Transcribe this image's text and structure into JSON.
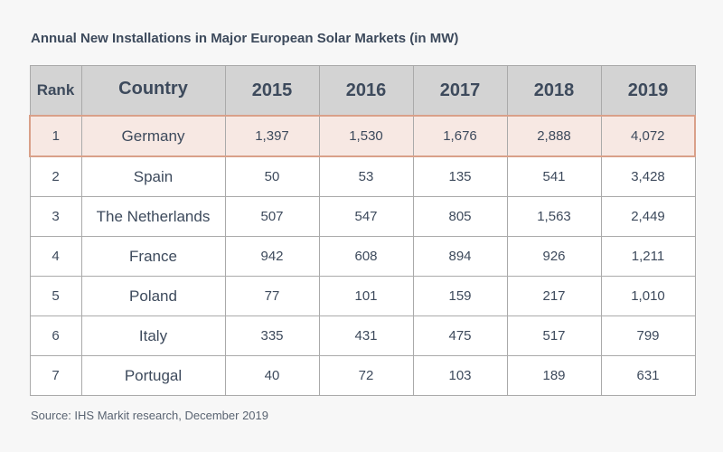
{
  "chart_data": {
    "type": "table",
    "title": "Annual New Installations in Major European Solar Markets (in MW)",
    "source": "Source: IHS Markit research, December 2019",
    "columns": [
      "Rank",
      "Country",
      "2015",
      "2016",
      "2017",
      "2018",
      "2019"
    ],
    "rows": [
      {
        "rank": "1",
        "country": "Germany",
        "values": [
          "1,397",
          "1,530",
          "1,676",
          "2,888",
          "4,072"
        ],
        "highlighted": true
      },
      {
        "rank": "2",
        "country": "Spain",
        "values": [
          "50",
          "53",
          "135",
          "541",
          "3,428"
        ]
      },
      {
        "rank": "3",
        "country": "The Netherlands",
        "values": [
          "507",
          "547",
          "805",
          "1,563",
          "2,449"
        ]
      },
      {
        "rank": "4",
        "country": "France",
        "values": [
          "942",
          "608",
          "894",
          "926",
          "1,211"
        ]
      },
      {
        "rank": "5",
        "country": "Poland",
        "values": [
          "77",
          "101",
          "159",
          "217",
          "1,010"
        ]
      },
      {
        "rank": "6",
        "country": "Italy",
        "values": [
          "335",
          "431",
          "475",
          "517",
          "799"
        ]
      },
      {
        "rank": "7",
        "country": "Portugal",
        "values": [
          "40",
          "72",
          "103",
          "189",
          "631"
        ]
      }
    ],
    "colors": {
      "header_background": "#d3d3d3",
      "highlight_background": "#f7e8e3",
      "highlight_border": "#d9a089",
      "text": "#3d4a5c"
    }
  }
}
